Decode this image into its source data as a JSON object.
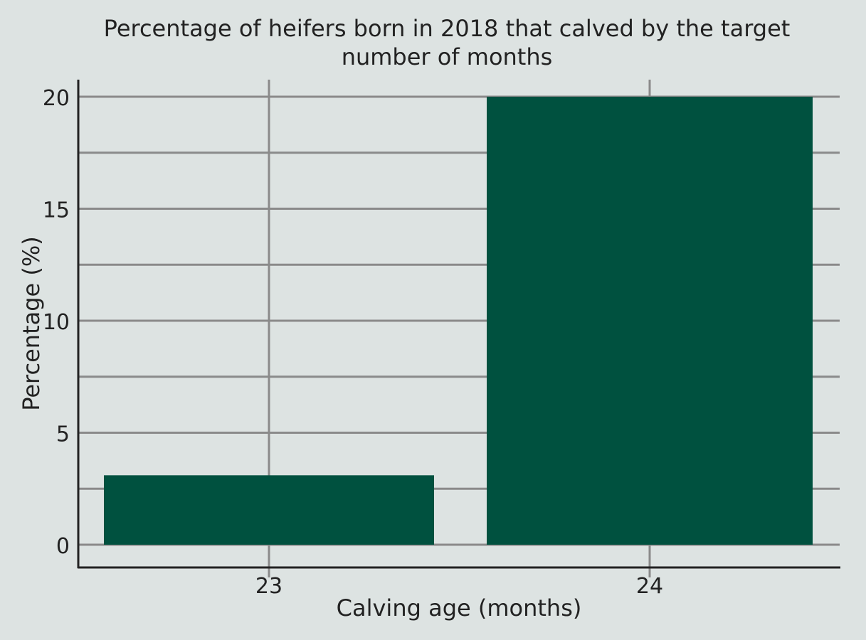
{
  "chart_data": {
    "type": "bar",
    "title_lines": [
      "Percentage of heifers born in 2018 that calved by the target",
      "number of months"
    ],
    "xlabel": "Calving age (months)",
    "ylabel": "Percentage (%)",
    "categories": [
      "23",
      "24"
    ],
    "values": [
      3.1,
      20
    ],
    "ylim": [
      0,
      21
    ],
    "yticks": [
      0,
      5,
      10,
      15,
      20
    ],
    "ytick_labels": [
      "0",
      "5",
      "10",
      "15",
      "20"
    ],
    "minor_gridlines": [
      2.5,
      7.5,
      12.5,
      17.5
    ],
    "grid": true,
    "legend": "none",
    "colors": {
      "bar": "#00513f",
      "grid": "#8a8a8a",
      "axis": "#222222",
      "background": "#dde3e2"
    }
  }
}
